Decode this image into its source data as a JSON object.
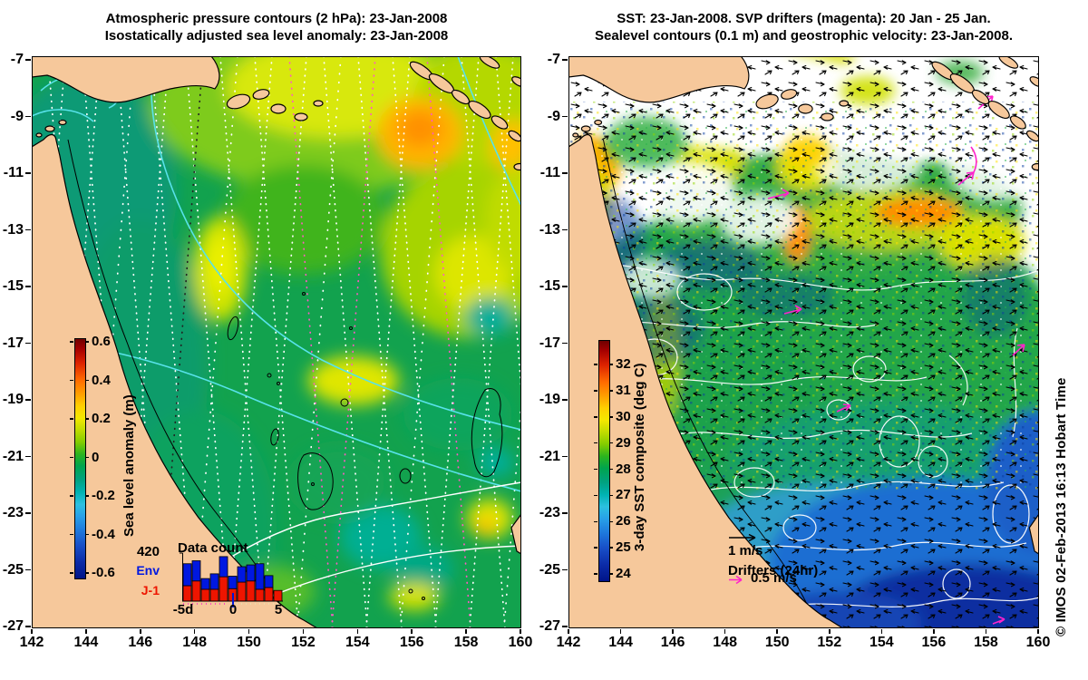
{
  "left_panel": {
    "title_line1": "Atmospheric pressure contours (2 hPa): 23-Jan-2008",
    "title_line2": "Isostatically adjusted sea level anomaly: 23-Jan-2008",
    "x_tick_labels": [
      "142",
      "144",
      "146",
      "148",
      "150",
      "152",
      "154",
      "156",
      "158",
      "160"
    ],
    "y_tick_labels": [
      "-7",
      "-9",
      "-11",
      "-13",
      "-15",
      "-17",
      "-19",
      "-21",
      "-23",
      "-25",
      "-27"
    ],
    "colorbar": {
      "label": "Sea level anomaly (m)",
      "tick_labels": [
        "0.6",
        "0.4",
        "0.2",
        "0",
        "-0.2",
        "-0.4",
        "-0.6"
      ]
    },
    "histogram": {
      "title": "Data count",
      "y_max_label": "420",
      "y_max": 420,
      "x_tick_labels": [
        "-5d",
        "0",
        "5"
      ],
      "days": [
        -5,
        -4,
        -3,
        -2,
        -1,
        0,
        1,
        2,
        3,
        4,
        5
      ],
      "series": [
        {
          "name": "Env",
          "color": "#0018e0",
          "values": [
            185,
            170,
            90,
            130,
            170,
            105,
            130,
            135,
            215,
            100,
            0
          ]
        },
        {
          "name": "J-1",
          "color": "#ee1500",
          "values": [
            130,
            170,
            100,
            100,
            205,
            105,
            160,
            170,
            100,
            115,
            90
          ]
        }
      ]
    }
  },
  "right_panel": {
    "title_line1": "SST: 23-Jan-2008. SVP drifters (magenta): 20 Jan - 25 Jan.",
    "title_line2": "Sealevel contours (0.1 m) and geostrophic velocity: 23-Jan-2008.",
    "x_tick_labels": [
      "142",
      "144",
      "146",
      "148",
      "150",
      "152",
      "154",
      "156",
      "158",
      "160"
    ],
    "y_tick_labels": [
      "-7",
      "-9",
      "-11",
      "-13",
      "-15",
      "-17",
      "-19",
      "-21",
      "-23",
      "-25",
      "-27"
    ],
    "colorbar": {
      "label": "3-day SST composite (deg C)",
      "tick_labels": [
        "32",
        "31",
        "30",
        "29",
        "28",
        "27",
        "26",
        "25",
        "24"
      ]
    },
    "legend": {
      "velocity_label": "1 m/s",
      "drifters_title": "Drifters (24hr)",
      "drifters_speed": "0.5 m/s"
    }
  },
  "attribution": "© IMOS 02-Feb-2013 16:13 Hobart Time",
  "colors": {
    "land": "#f6c89b",
    "coastline": "#000000",
    "pressure_contour_sea": "#58e2ea",
    "pressure_contour_land": "#ffffff",
    "sealevel_contour": "#ffffff",
    "drifter_magenta": "#ff22cc",
    "env_blue": "#0018e0",
    "j1_red": "#ee1500"
  }
}
